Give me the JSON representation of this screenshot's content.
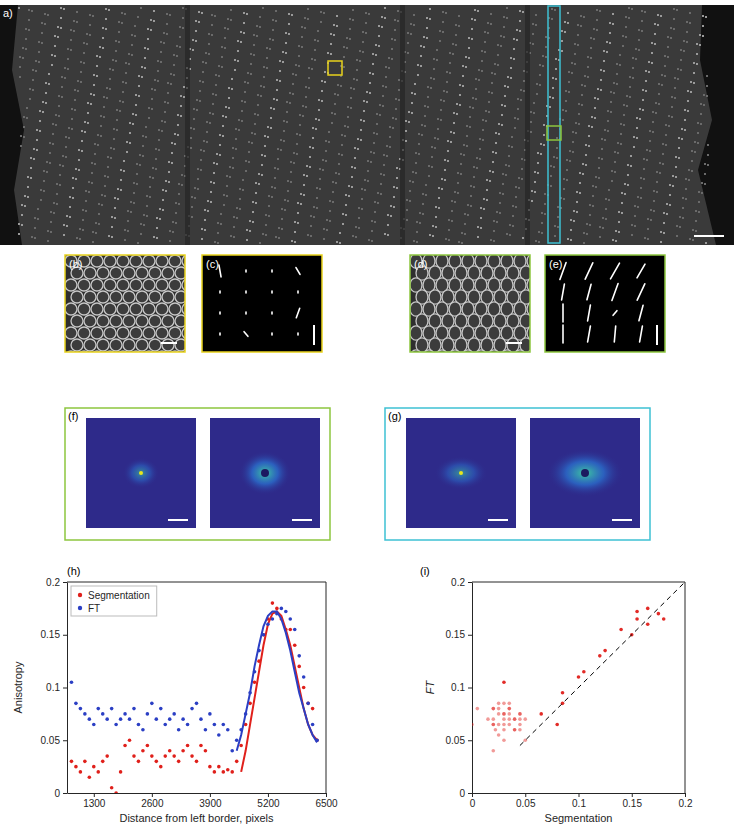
{
  "figure": {
    "panel_labels": [
      "a)",
      "(b)",
      "(c)",
      "(d)",
      "(e)",
      "(f)",
      "(g)"
    ]
  },
  "chart_data": [
    {
      "type": "scatter",
      "title": "(h)",
      "xlabel": "Distance from left border, pixels",
      "ylabel": "Anisotropy",
      "xlim": [
        700,
        6500
      ],
      "xticks": [
        1300,
        2600,
        3900,
        5200,
        6500
      ],
      "ylim": [
        0,
        0.2
      ],
      "yticks": [
        0,
        0.05,
        0.1,
        0.15,
        0.2
      ],
      "grid": false,
      "legend": "upper left",
      "series": [
        {
          "name": "Segmentation",
          "color": "#e0201b",
          "marker": "circle",
          "x": [
            800,
            900,
            1000,
            1100,
            1200,
            1300,
            1400,
            1500,
            1600,
            1700,
            1800,
            1900,
            2000,
            2100,
            2200,
            2300,
            2400,
            2500,
            2600,
            2700,
            2800,
            2900,
            3000,
            3100,
            3200,
            3300,
            3400,
            3500,
            3600,
            3700,
            3800,
            3900,
            4000,
            4100,
            4200,
            4300,
            4400,
            4500,
            4600,
            4700,
            4800,
            4900,
            5000,
            5100,
            5200,
            5300,
            5400,
            5500,
            5600,
            5700,
            5800,
            5900,
            6000,
            6100,
            6200,
            6300
          ],
          "values": [
            0.03,
            0.025,
            0.02,
            0.03,
            0.015,
            0.025,
            0.02,
            0.03,
            0.035,
            0.005,
            0,
            0.02,
            0.045,
            0.05,
            0.035,
            0.03,
            0.04,
            0.045,
            0.035,
            0.03,
            0.025,
            0.035,
            0.04,
            0.035,
            0.03,
            0.04,
            0.045,
            0.035,
            0.03,
            0.045,
            0.04,
            0.025,
            0.02,
            0.025,
            0.02,
            0.022,
            0.02,
            0.03,
            0.045,
            0.065,
            0.085,
            0.105,
            0.125,
            0.15,
            0.165,
            0.18,
            0.175,
            0.165,
            0.155,
            0.155,
            0.14,
            0.12,
            0.1,
            0.085,
            0.08,
            0.05
          ],
          "fit": {
            "x": [
              4600,
              4700,
              4800,
              4900,
              5000,
              5100,
              5200,
              5300,
              5400,
              5500,
              5600,
              5700,
              5800,
              5900,
              6000,
              6100,
              6200,
              6300
            ],
            "values": [
              0.02,
              0.04,
              0.065,
              0.09,
              0.115,
              0.14,
              0.16,
              0.17,
              0.172,
              0.168,
              0.155,
              0.14,
              0.12,
              0.1,
              0.08,
              0.065,
              0.055,
              0.05
            ]
          }
        },
        {
          "name": "FT",
          "color": "#2b3fc4",
          "marker": "circle",
          "x": [
            800,
            900,
            1000,
            1100,
            1200,
            1300,
            1400,
            1500,
            1600,
            1700,
            1800,
            1900,
            2000,
            2100,
            2200,
            2300,
            2400,
            2500,
            2600,
            2700,
            2800,
            2900,
            3000,
            3100,
            3200,
            3300,
            3400,
            3500,
            3600,
            3700,
            3800,
            3900,
            4000,
            4100,
            4200,
            4300,
            4400,
            4500,
            4600,
            4700,
            4800,
            4900,
            5000,
            5100,
            5200,
            5300,
            5400,
            5500,
            5600,
            5700,
            5800,
            5900,
            6000,
            6100,
            6200,
            6300
          ],
          "values": [
            0.105,
            0.085,
            0.08,
            0.075,
            0.07,
            0.065,
            0.08,
            0.075,
            0.07,
            0.08,
            0.065,
            0.07,
            0.075,
            0.07,
            0.08,
            0.065,
            0.06,
            0.075,
            0.085,
            0.07,
            0.08,
            0.065,
            0.07,
            0.075,
            0.06,
            0.07,
            0.065,
            0.08,
            0.085,
            0.07,
            0.06,
            0.075,
            0.065,
            0.055,
            0.065,
            0.06,
            0.04,
            0.05,
            0.06,
            0.075,
            0.095,
            0.115,
            0.135,
            0.15,
            0.16,
            0.165,
            0.17,
            0.175,
            0.172,
            0.165,
            0.155,
            0.13,
            0.11,
            0.085,
            0.065,
            0.05
          ],
          "fit": {
            "x": [
              4500,
              4600,
              4700,
              4800,
              4900,
              5000,
              5100,
              5200,
              5300,
              5400,
              5500,
              5600,
              5700,
              5800,
              5900,
              6000,
              6100,
              6200,
              6300
            ],
            "values": [
              0.04,
              0.055,
              0.075,
              0.095,
              0.12,
              0.14,
              0.158,
              0.168,
              0.172,
              0.172,
              0.165,
              0.152,
              0.135,
              0.115,
              0.095,
              0.08,
              0.065,
              0.055,
              0.048
            ]
          }
        }
      ]
    },
    {
      "type": "scatter",
      "title": "(i)",
      "xlabel": "Segmentation",
      "ylabel": "FT",
      "xlim": [
        0,
        0.2
      ],
      "xticks": [
        0,
        0.05,
        0.1,
        0.15,
        0.2
      ],
      "ylim": [
        0,
        0.2
      ],
      "yticks": [
        0,
        0.05,
        0.1,
        0.15,
        0.2
      ],
      "grid": false,
      "series": [
        {
          "type": "scatter",
          "color": "#e0201b",
          "marker": "circle",
          "x": [
            0.03,
            0.025,
            0.02,
            0.03,
            0.015,
            0.025,
            0.02,
            0.03,
            0.035,
            0.005,
            0,
            0.02,
            0.045,
            0.05,
            0.035,
            0.03,
            0.04,
            0.045,
            0.035,
            0.03,
            0.025,
            0.035,
            0.04,
            0.035,
            0.03,
            0.04,
            0.045,
            0.035,
            0.03,
            0.045,
            0.04,
            0.025,
            0.02,
            0.025,
            0.02,
            0.022,
            0.02,
            0.03,
            0.045,
            0.065,
            0.085,
            0.105,
            0.125,
            0.15,
            0.165,
            0.18,
            0.175,
            0.165,
            0.155,
            0.155,
            0.14,
            0.12,
            0.1,
            0.085,
            0.08,
            0.05
          ],
          "values": [
            0.105,
            0.085,
            0.08,
            0.075,
            0.07,
            0.065,
            0.08,
            0.075,
            0.07,
            0.08,
            0.065,
            0.07,
            0.075,
            0.07,
            0.08,
            0.065,
            0.06,
            0.075,
            0.085,
            0.07,
            0.08,
            0.065,
            0.07,
            0.075,
            0.06,
            0.07,
            0.065,
            0.08,
            0.085,
            0.07,
            0.06,
            0.075,
            0.065,
            0.055,
            0.065,
            0.06,
            0.04,
            0.05,
            0.06,
            0.075,
            0.095,
            0.115,
            0.135,
            0.15,
            0.16,
            0.165,
            0.17,
            0.175,
            0.172,
            0.165,
            0.155,
            0.13,
            0.11,
            0.085,
            0.065,
            0.05
          ]
        },
        {
          "type": "line",
          "color": "#000000",
          "line_style": "dashed",
          "x": [
            0.045,
            0.2
          ],
          "values": [
            0.045,
            0.2
          ]
        }
      ]
    }
  ]
}
